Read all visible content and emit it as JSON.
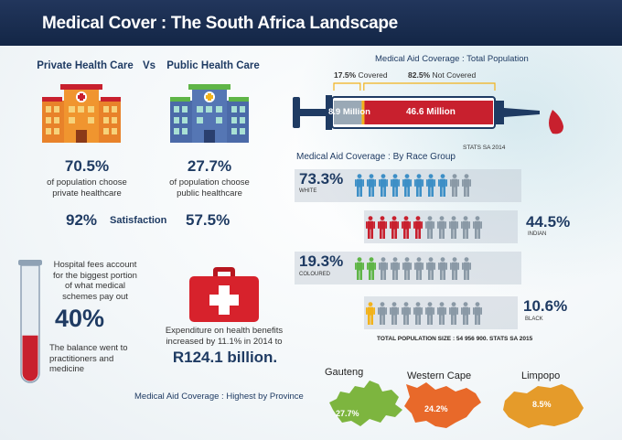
{
  "header": {
    "title": "Medical Cover :  The South Africa Landscape"
  },
  "health": {
    "private_title": "Private Health Care",
    "vs": "Vs",
    "public_title": "Public Health Care",
    "private_pct": "70.5%",
    "private_desc": "of population choose private healthcare",
    "public_pct": "27.7%",
    "public_desc": "of population choose public healthcare",
    "satisfaction_private": "92%",
    "satisfaction_label": "Satisfaction",
    "satisfaction_public": "57.5%"
  },
  "hospital": {
    "text": "Hospital fees account for the biggest portion of what medical schemes pay out",
    "pct": "40%",
    "fill": 0.4,
    "balance": "The balance went to practitioners and medicine"
  },
  "expenditure": {
    "text": "Expenditure on health benefits increased by 11.1% in 2014 to",
    "amount": "R124.1 billion."
  },
  "coverage": {
    "title": "Medical Aid Coverage : Total Population",
    "covered_pct": "17.5%",
    "covered_label": "Covered",
    "not_covered_pct": "82.5%",
    "not_covered_label": "Not Covered",
    "covered_value": "8.9 Million",
    "not_covered_value": "46.6 Million",
    "source": "STATS SA 2014",
    "covered_fraction": 0.175
  },
  "race": {
    "title": "Medical Aid Coverage : By Race Group",
    "groups": [
      {
        "pct": "73.3%",
        "label": "WHITE",
        "covered": 8,
        "color": "#3d8fc6"
      },
      {
        "pct": "44.5%",
        "label": "INDIAN",
        "covered": 5,
        "color": "#c8202e"
      },
      {
        "pct": "19.3%",
        "label": "COLOURED",
        "covered": 2,
        "color": "#5fb547"
      },
      {
        "pct": "10.6%",
        "label": "BLACK",
        "covered": 1,
        "color": "#f2b21b"
      }
    ],
    "total": "TOTAL POPULATION SIZE : 54 956 900. STATS SA 2015",
    "uncovered_color": "#8a99a6"
  },
  "province": {
    "title": "Medical Aid Coverage : Highest by Province",
    "items": [
      {
        "name": "Gauteng",
        "pct": "27.7%",
        "color": "#7db53f"
      },
      {
        "name": "Western Cape",
        "pct": "24.2%",
        "color": "#e8692a"
      },
      {
        "name": "Limpopo",
        "pct": "8.5%",
        "color": "#e59b2a"
      }
    ]
  }
}
